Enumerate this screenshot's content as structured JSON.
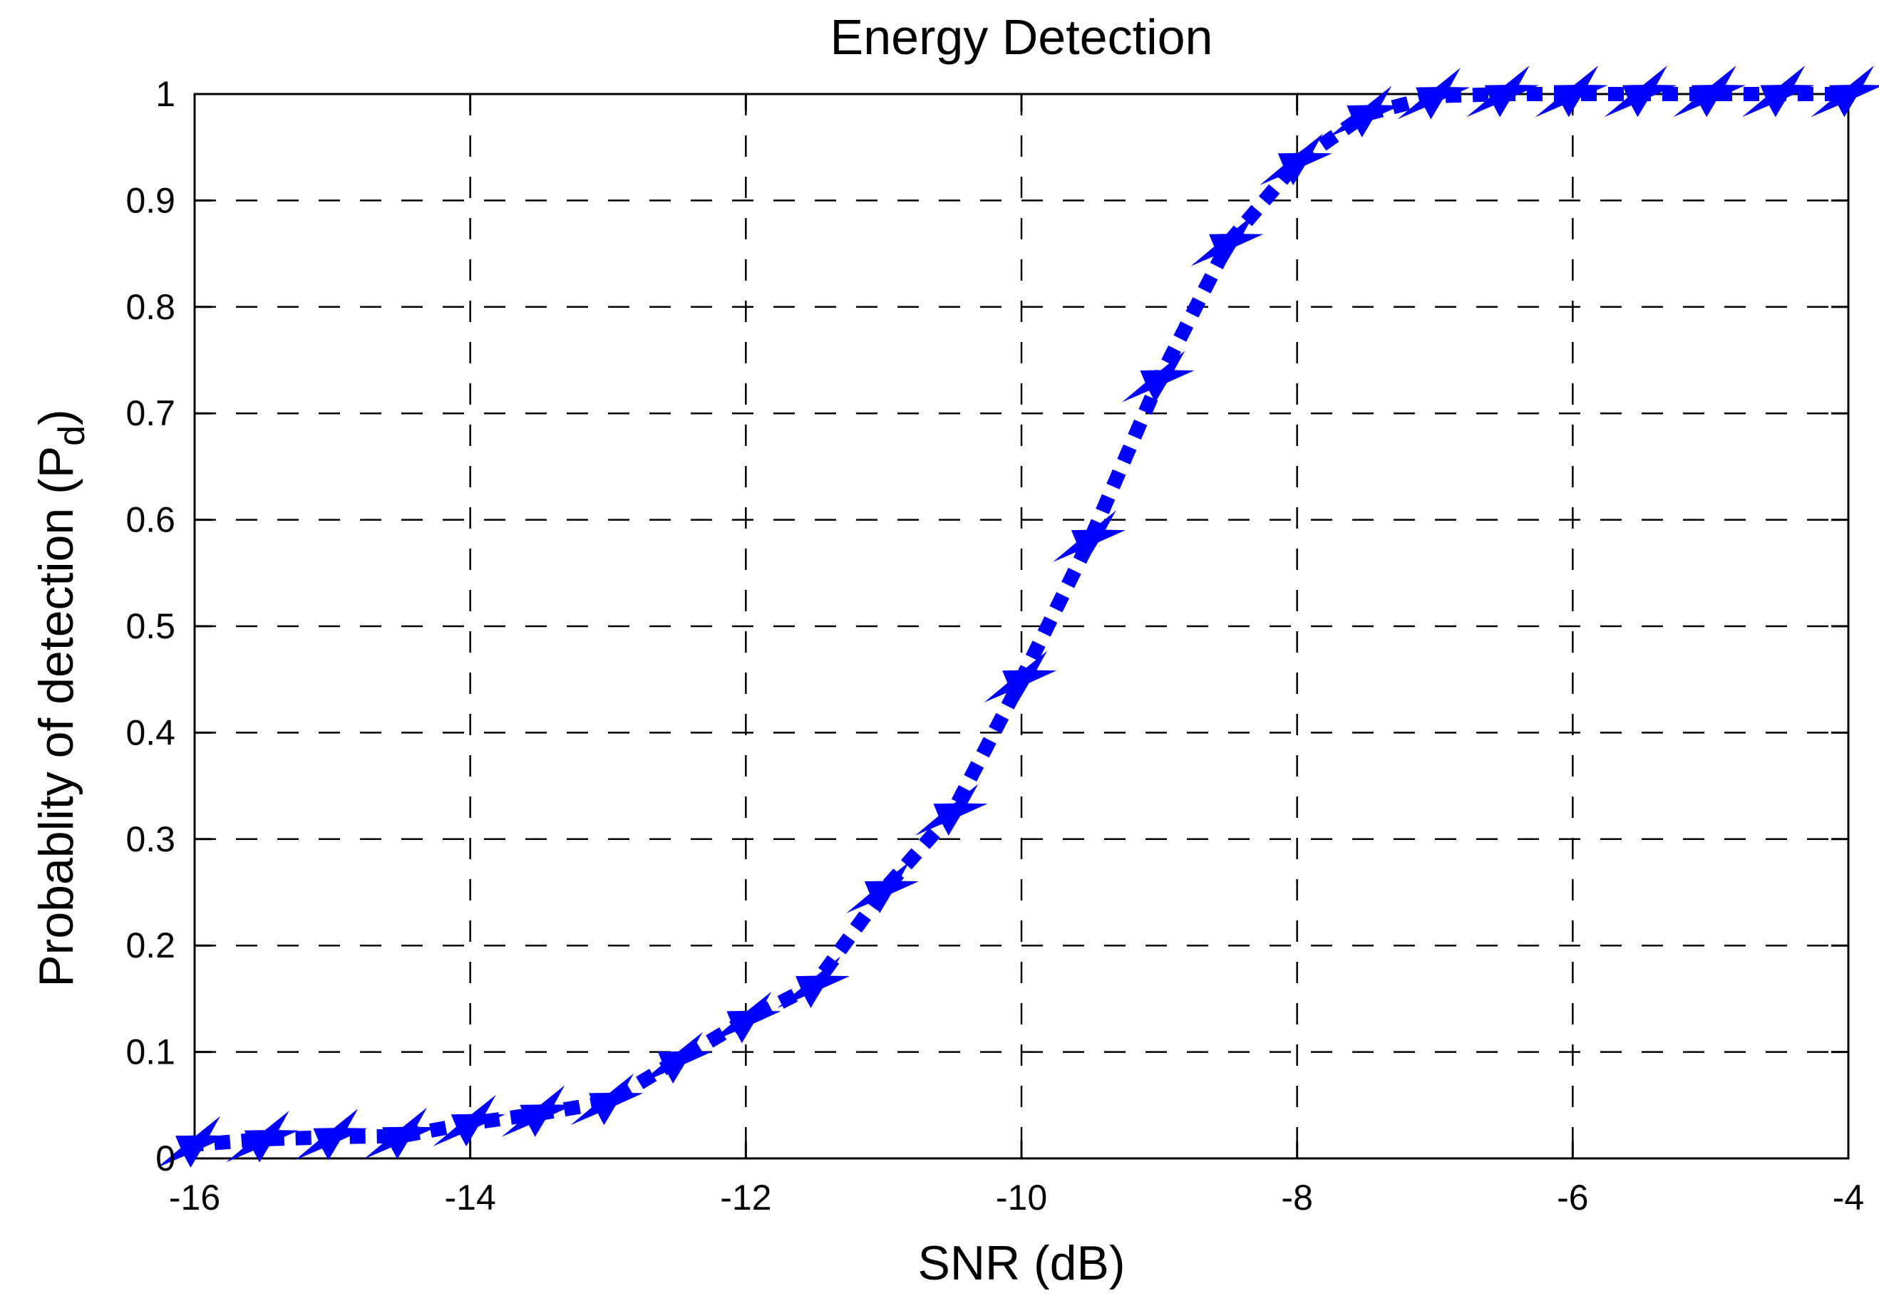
{
  "figure": {
    "background": "#ffffff"
  },
  "chart_data": {
    "type": "line",
    "title": "Energy Detection",
    "xlabel": "SNR (dB)",
    "ylabel_main": "Probablity of detection (P",
    "ylabel_sub": "d",
    "ylabel_close": ")",
    "x": [
      -16,
      -15.5,
      -15,
      -14.5,
      -14,
      -13.5,
      -13,
      -12.5,
      -12,
      -11.5,
      -11,
      -10.5,
      -10,
      -9.5,
      -9,
      -8.5,
      -8,
      -7.5,
      -7,
      -6.5,
      -6,
      -5.5,
      -5,
      -4.5,
      -4
    ],
    "y": [
      0.013,
      0.018,
      0.02,
      0.021,
      0.033,
      0.042,
      0.053,
      0.092,
      0.13,
      0.163,
      0.252,
      0.325,
      0.45,
      0.582,
      0.732,
      0.86,
      0.936,
      0.981,
      0.998,
      1,
      1,
      1,
      1,
      1,
      1
    ],
    "xlim": [
      -16,
      -4
    ],
    "ylim": [
      0,
      1
    ],
    "xticks": [
      -16,
      -14,
      -12,
      -10,
      -8,
      -6,
      -4
    ],
    "xtick_labels": [
      "-16",
      "-14",
      "-12",
      "-10",
      "-8",
      "-6",
      "-4"
    ],
    "yticks": [
      0,
      0.1,
      0.2,
      0.3,
      0.4,
      0.5,
      0.6,
      0.7,
      0.8,
      0.9,
      1
    ],
    "ytick_labels": [
      "0",
      "0.1",
      "0.2",
      "0.3",
      "0.4",
      "0.5",
      "0.6",
      "0.7",
      "0.8",
      "0.9",
      "1"
    ],
    "grid": "dashed",
    "legend": null,
    "axis_color": "#000000",
    "line": {
      "color": "#0000FF",
      "style": "dotted",
      "width": 20
    },
    "marker": {
      "shape": "pentagram",
      "color": "#0000FF",
      "size": 40,
      "skew": 0.9
    }
  }
}
